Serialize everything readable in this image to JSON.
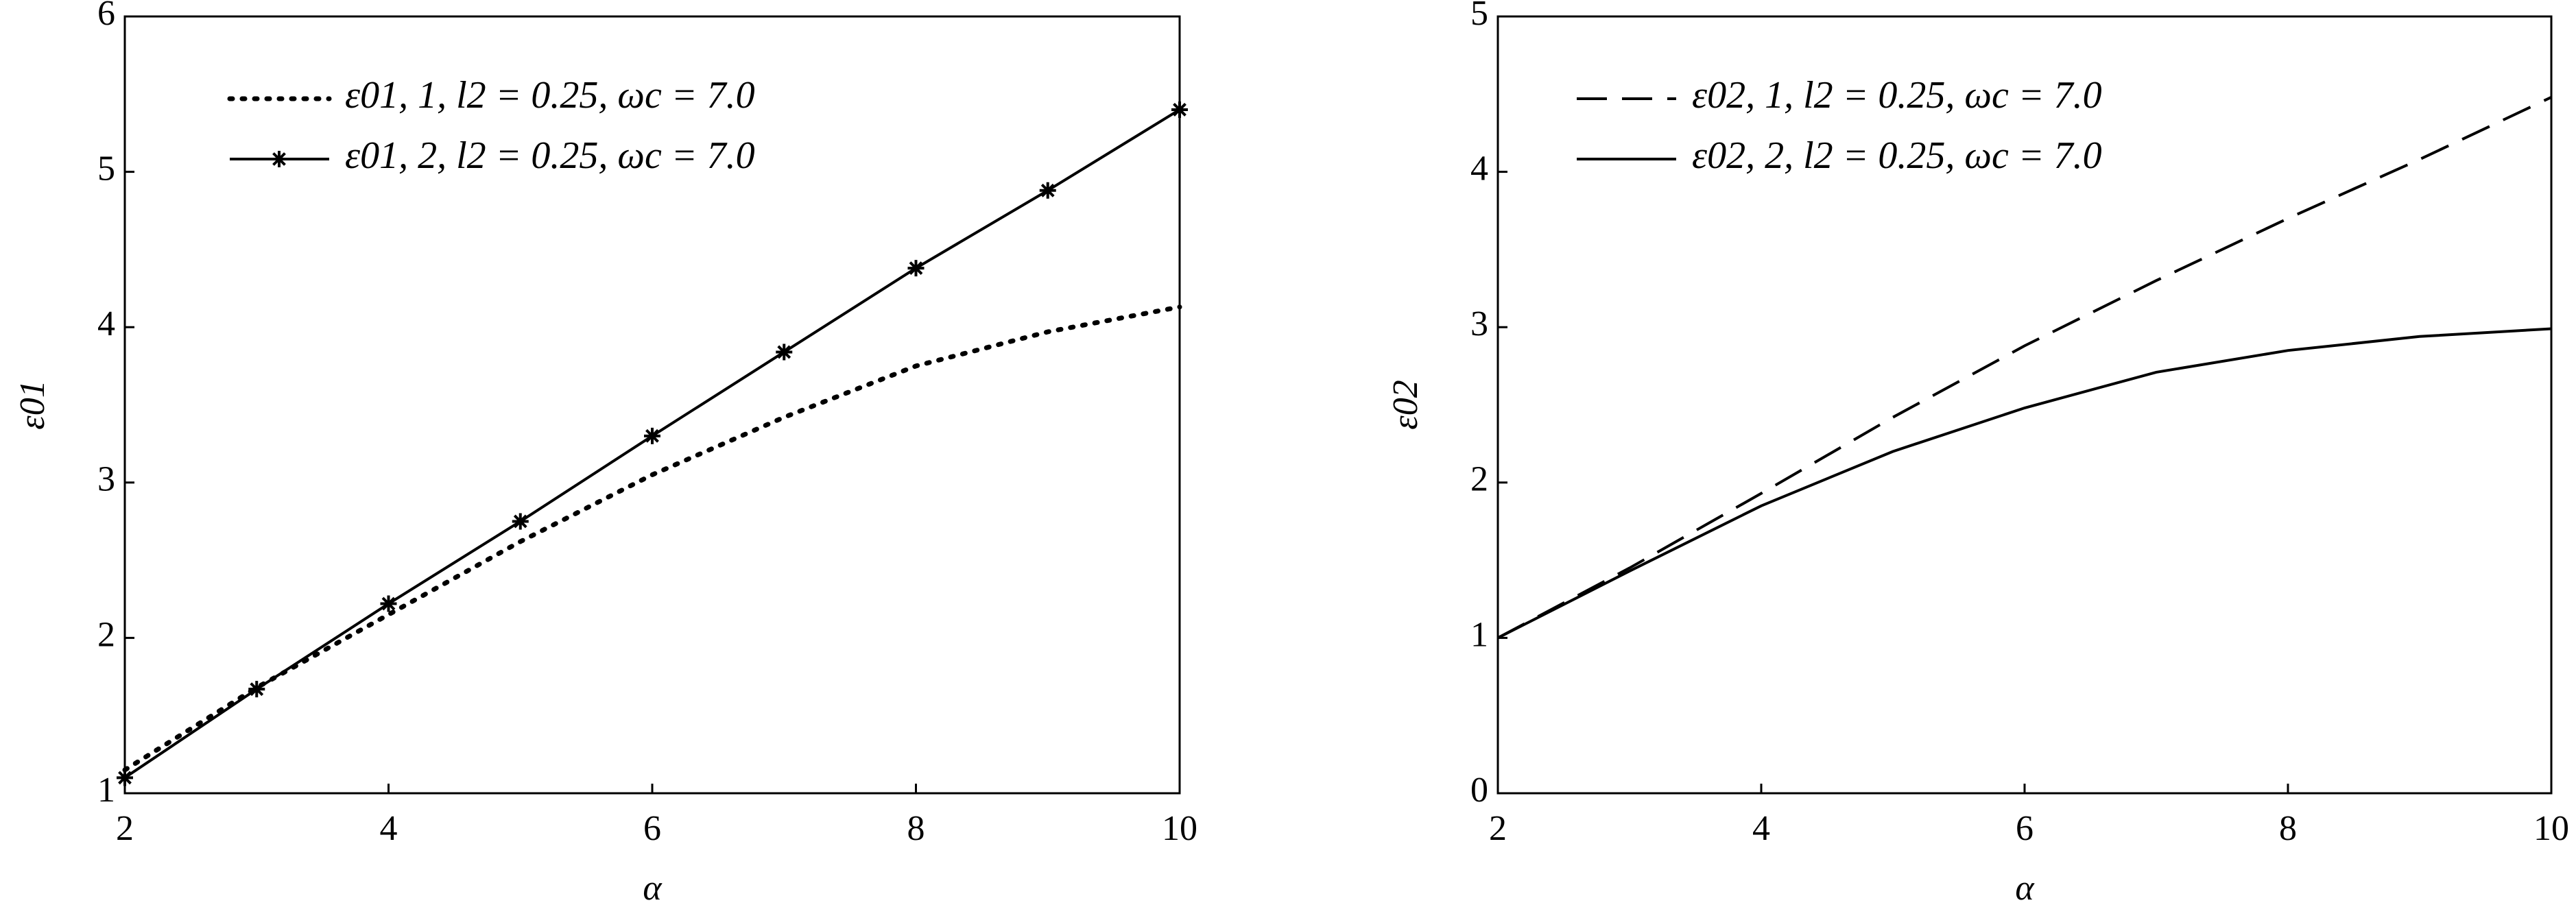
{
  "chart_data": [
    {
      "type": "line",
      "xlabel": "α",
      "ylabel": "ε01",
      "x": [
        2,
        3,
        4,
        5,
        6,
        7,
        8,
        9,
        10
      ],
      "xlim": [
        2,
        10
      ],
      "xticks": [
        2,
        4,
        6,
        8,
        10
      ],
      "ylim": [
        1,
        6
      ],
      "yticks": [
        1,
        2,
        3,
        4,
        5,
        6
      ],
      "series": [
        {
          "name": "ε01, 1, l2 = 0.25, ωc = 7.0",
          "color": "#000000",
          "dash": "dotted",
          "values": [
            1.15,
            1.68,
            2.15,
            2.62,
            3.05,
            3.42,
            3.75,
            3.97,
            4.13
          ]
        },
        {
          "name": "ε01, 2, l2 = 0.25, ωc = 7.0",
          "color": "#000000",
          "dash": "solid",
          "marker": "asterisk",
          "values": [
            1.1,
            1.67,
            2.22,
            2.75,
            3.3,
            3.84,
            4.38,
            4.88,
            5.4
          ]
        }
      ]
    },
    {
      "type": "line",
      "xlabel": "α",
      "ylabel": "ε02",
      "x": [
        2,
        3,
        4,
        5,
        6,
        7,
        8,
        9,
        10
      ],
      "xlim": [
        2,
        10
      ],
      "xticks": [
        2,
        4,
        6,
        8,
        10
      ],
      "ylim": [
        0,
        5
      ],
      "yticks": [
        0,
        1,
        2,
        3,
        4,
        5
      ],
      "series": [
        {
          "name": "ε02, 1, l2 = 0.25, ωc = 7.0",
          "color": "#000000",
          "dash": "dashed",
          "values": [
            1.0,
            1.45,
            1.93,
            2.42,
            2.88,
            3.3,
            3.7,
            4.08,
            4.48
          ]
        },
        {
          "name": "ε02, 2, l2 = 0.25, ωc = 7.0",
          "color": "#000000",
          "dash": "solid",
          "values": [
            1.0,
            1.43,
            1.85,
            2.2,
            2.48,
            2.71,
            2.85,
            2.94,
            2.99
          ]
        }
      ]
    }
  ]
}
